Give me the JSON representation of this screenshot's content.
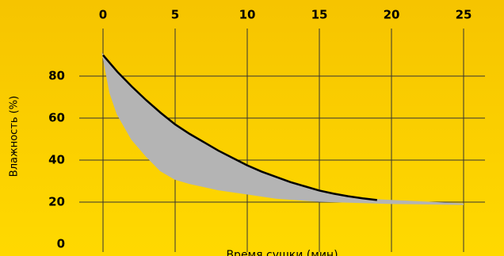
{
  "chart_data": {
    "type": "area_band",
    "xlabel": "Время сушки (мин)",
    "ylabel": "Влажность (%)",
    "series": [
      {
        "color": "#000000",
        "x": [
          0,
          1,
          2,
          3,
          4,
          5,
          6,
          7,
          8,
          9,
          10,
          11,
          12,
          13,
          14,
          15,
          16,
          17,
          18,
          19
        ],
        "values": [
          90,
          82,
          75,
          68.5,
          62.5,
          57,
          52.5,
          48.5,
          44.5,
          41,
          37.5,
          34.5,
          32,
          29.5,
          27.5,
          25.5,
          24,
          22.8,
          21.8,
          21
        ]
      },
      {
        "color": "#b4b4b4",
        "x": [
          0,
          0.5,
          1,
          2,
          3,
          4,
          5,
          6,
          8,
          10,
          12,
          15,
          20,
          25
        ],
        "values": [
          90,
          72,
          62,
          50,
          42,
          35,
          31,
          29,
          26,
          24,
          22,
          20.5,
          19.5,
          19
        ]
      }
    ],
    "xlim": [
      0,
      25
    ],
    "xticks": [
      0,
      5,
      10,
      15,
      20,
      25
    ],
    "ylim": [
      0,
      80
    ],
    "yticks": [
      0,
      20,
      40,
      60,
      80
    ],
    "grid": true
  }
}
